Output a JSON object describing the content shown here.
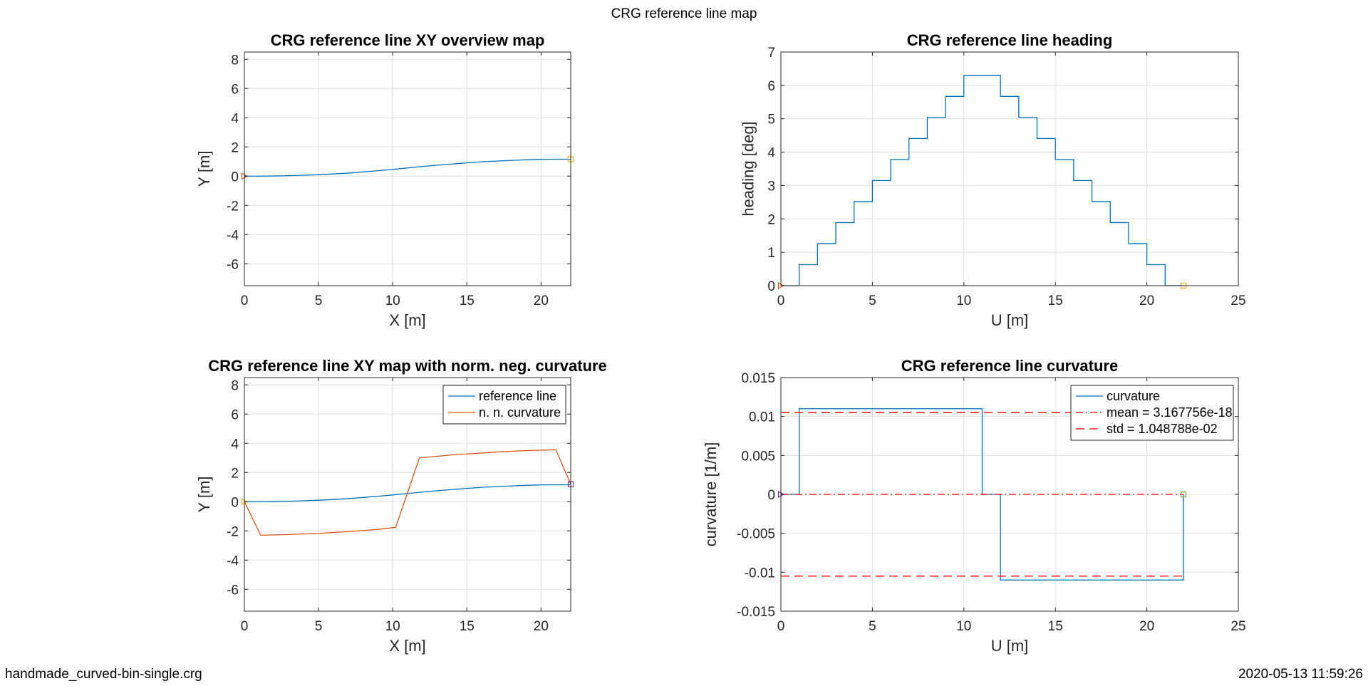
{
  "figure": {
    "suptitle": "CRG reference line map",
    "footer_left": "handmade_curved-bin-single.crg",
    "footer_right": "2020-05-13 11:59:26"
  },
  "colors": {
    "blue": "#0072BD",
    "orange": "#D95319",
    "yellow": "#EDB120",
    "red": "#FF0000",
    "purple": "#7E2F8E",
    "green": "#77AC30",
    "grid": "#DFDFDF",
    "axis": "#262626"
  },
  "chart_data": [
    {
      "id": "xy",
      "type": "line",
      "title": "CRG reference line XY overview map",
      "xlabel": "X [m]",
      "ylabel": "Y [m]",
      "xlim": [
        0,
        22
      ],
      "ylim": [
        -7.5,
        8.5
      ],
      "xticks": [
        0,
        5,
        10,
        15,
        20
      ],
      "yticks": [
        -6,
        -4,
        -2,
        0,
        2,
        4,
        6,
        8
      ],
      "xtick_labels": [
        "0",
        "5",
        "10",
        "15",
        "20"
      ],
      "ytick_labels": [
        "-6",
        "-4",
        "-2",
        "0",
        "2",
        "4",
        "6",
        "8"
      ],
      "grid": true,
      "series": [
        {
          "color": "blue",
          "style": "solid",
          "x": [
            0,
            1,
            2,
            3,
            4,
            5,
            6,
            7,
            8,
            9,
            10,
            11,
            12,
            13,
            14,
            15,
            16,
            17,
            18,
            19,
            20,
            21,
            22
          ],
          "y": [
            0,
            0.0,
            0.01,
            0.03,
            0.06,
            0.1,
            0.15,
            0.21,
            0.29,
            0.37,
            0.46,
            0.56,
            0.66,
            0.75,
            0.83,
            0.91,
            0.98,
            1.03,
            1.08,
            1.12,
            1.15,
            1.16,
            1.16
          ]
        }
      ],
      "markers": [
        {
          "x": 0,
          "y": 0,
          "shape": "triangle",
          "color": "orange"
        },
        {
          "x": 22,
          "y": 1.16,
          "shape": "square",
          "color": "yellow"
        }
      ]
    },
    {
      "id": "heading",
      "type": "line",
      "title": "CRG reference line heading",
      "xlabel": "U [m]",
      "ylabel": "heading [deg]",
      "xlim": [
        0,
        25
      ],
      "ylim": [
        0,
        7
      ],
      "xticks": [
        0,
        5,
        10,
        15,
        20,
        25
      ],
      "yticks": [
        0,
        1,
        2,
        3,
        4,
        5,
        6,
        7
      ],
      "xtick_labels": [
        "0",
        "5",
        "10",
        "15",
        "20",
        "25"
      ],
      "ytick_labels": [
        "0",
        "1",
        "2",
        "3",
        "4",
        "5",
        "6",
        "7"
      ],
      "grid": true,
      "series": [
        {
          "color": "blue",
          "style": "solid",
          "x": [
            0,
            1,
            1,
            2,
            2,
            3,
            3,
            4,
            4,
            5,
            5,
            6,
            6,
            7,
            7,
            8,
            8,
            9,
            9,
            10,
            10,
            11,
            12,
            12,
            13,
            13,
            14,
            14,
            15,
            15,
            16,
            16,
            17,
            17,
            18,
            18,
            19,
            19,
            20,
            20,
            21,
            21,
            22
          ],
          "y": [
            0,
            0,
            0.63,
            0.63,
            1.26,
            1.26,
            1.89,
            1.89,
            2.52,
            2.52,
            3.15,
            3.15,
            3.78,
            3.78,
            4.41,
            4.41,
            5.04,
            5.04,
            5.67,
            5.67,
            6.3,
            6.3,
            6.3,
            5.67,
            5.67,
            5.04,
            5.04,
            4.41,
            4.41,
            3.78,
            3.78,
            3.15,
            3.15,
            2.52,
            2.52,
            1.89,
            1.89,
            1.26,
            1.26,
            0.63,
            0.63,
            0,
            0
          ]
        }
      ],
      "markers": [
        {
          "x": 0,
          "y": 0,
          "shape": "triangle",
          "color": "orange"
        },
        {
          "x": 22,
          "y": 0,
          "shape": "square",
          "color": "yellow"
        }
      ]
    },
    {
      "id": "xycurv",
      "type": "line",
      "title": "CRG reference line XY map with norm. neg. curvature",
      "xlabel": "X [m]",
      "ylabel": "Y [m]",
      "xlim": [
        0,
        22
      ],
      "ylim": [
        -7.5,
        8.5
      ],
      "xticks": [
        0,
        5,
        10,
        15,
        20
      ],
      "yticks": [
        -6,
        -4,
        -2,
        0,
        2,
        4,
        6,
        8
      ],
      "xtick_labels": [
        "0",
        "5",
        "10",
        "15",
        "20"
      ],
      "ytick_labels": [
        "-6",
        "-4",
        "-2",
        "0",
        "2",
        "4",
        "6",
        "8"
      ],
      "grid": true,
      "legend": {
        "position": "top-right",
        "entries": [
          "reference line",
          "n. n. curvature"
        ]
      },
      "series": [
        {
          "name": "reference line",
          "color": "blue",
          "style": "solid",
          "x": [
            0,
            1,
            2,
            3,
            4,
            5,
            6,
            7,
            8,
            9,
            10,
            11,
            12,
            13,
            14,
            15,
            16,
            17,
            18,
            19,
            20,
            21,
            22
          ],
          "y": [
            0,
            0.0,
            0.01,
            0.03,
            0.06,
            0.1,
            0.15,
            0.21,
            0.29,
            0.37,
            0.46,
            0.56,
            0.66,
            0.75,
            0.83,
            0.91,
            0.98,
            1.03,
            1.08,
            1.12,
            1.15,
            1.16,
            1.16
          ]
        },
        {
          "name": "n. n. curvature",
          "color": "orange",
          "style": "solid",
          "x": [
            0,
            1.1,
            3,
            5,
            7,
            9,
            10.2,
            11.8,
            14,
            17,
            19,
            21,
            22
          ],
          "y": [
            0,
            -2.3,
            -2.25,
            -2.17,
            -2.05,
            -1.9,
            -1.76,
            3.0,
            3.2,
            3.4,
            3.5,
            3.55,
            1.2
          ]
        }
      ],
      "markers": [
        {
          "x": 0,
          "y": 0,
          "shape": "triangle",
          "color": "yellow"
        },
        {
          "x": 22,
          "y": 1.2,
          "shape": "square",
          "color": "purple"
        }
      ]
    },
    {
      "id": "curv",
      "type": "line",
      "title": "CRG reference line curvature",
      "xlabel": "U [m]",
      "ylabel": "curvature [1/m]",
      "xlim": [
        0,
        25
      ],
      "ylim": [
        -0.015,
        0.015
      ],
      "xticks": [
        0,
        5,
        10,
        15,
        20,
        25
      ],
      "yticks": [
        -0.015,
        -0.01,
        -0.005,
        0,
        0.005,
        0.01,
        0.015
      ],
      "xtick_labels": [
        "0",
        "5",
        "10",
        "15",
        "20",
        "25"
      ],
      "ytick_labels": [
        "-0.015",
        "-0.01",
        "-0.005",
        "0",
        "0.005",
        "0.01",
        "0.015"
      ],
      "grid": true,
      "legend": {
        "position": "top-right",
        "entries": [
          "curvature",
          "mean = 3.167756e-18",
          "std = 1.048788e-02"
        ]
      },
      "series": [
        {
          "name": "curvature",
          "color": "blue",
          "style": "solid",
          "x": [
            0,
            1,
            1,
            11,
            11,
            12,
            12,
            22,
            22
          ],
          "y": [
            0,
            0,
            0.011,
            0.011,
            0,
            0,
            -0.011,
            -0.011,
            0
          ]
        },
        {
          "name": "mean = 3.167756e-18",
          "color": "red",
          "style": "dashdot",
          "x": [
            0,
            22
          ],
          "y": [
            0,
            0
          ]
        },
        {
          "name": "std = 1.048788e-02",
          "color": "red",
          "style": "dashed",
          "x": [
            0,
            22
          ],
          "y": [
            0.01048788,
            0.01048788
          ]
        },
        {
          "color": "red",
          "style": "dashed",
          "x": [
            0,
            22
          ],
          "y": [
            -0.01048788,
            -0.01048788
          ]
        }
      ],
      "markers": [
        {
          "x": 0,
          "y": 0,
          "shape": "triangle",
          "color": "purple"
        },
        {
          "x": 22,
          "y": 0,
          "shape": "square",
          "color": "green"
        }
      ]
    }
  ]
}
